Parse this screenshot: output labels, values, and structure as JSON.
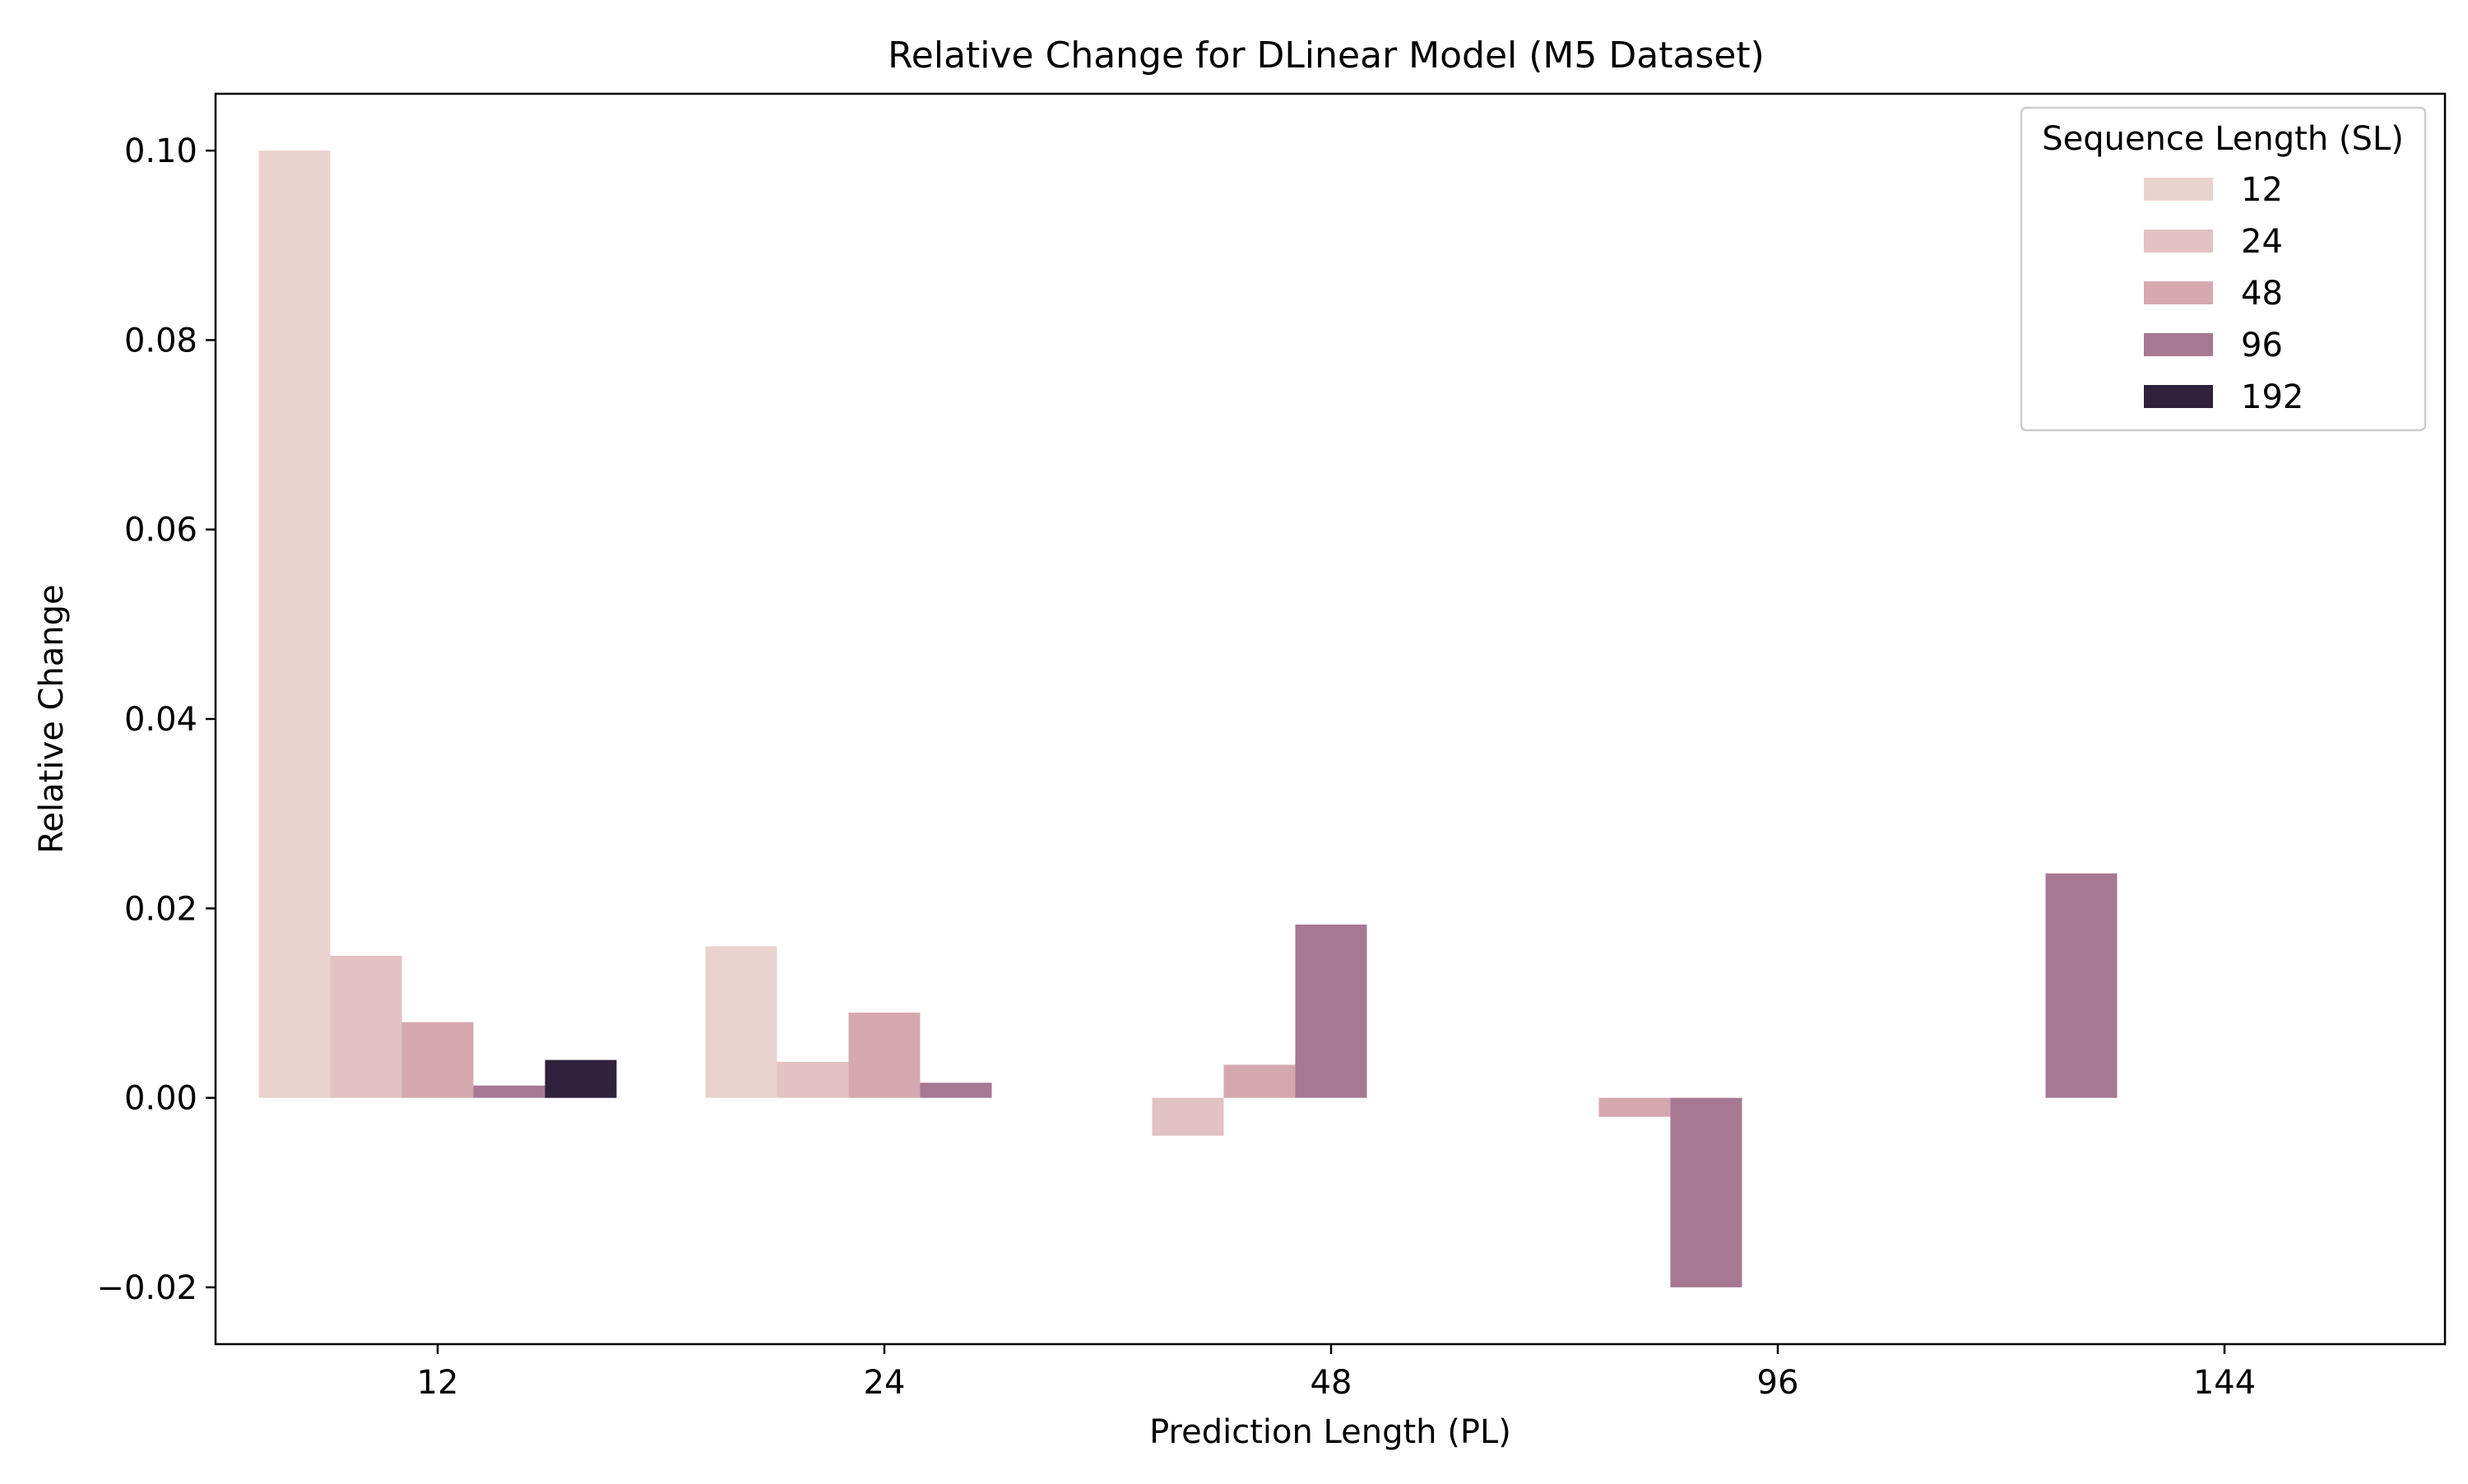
{
  "chart_data": {
    "type": "bar",
    "title": "Relative Change for DLinear Model (M5 Dataset)",
    "xlabel": "Prediction Length (PL)",
    "ylabel": "Relative Change",
    "categories": [
      "12",
      "24",
      "48",
      "96",
      "144"
    ],
    "ylim": [
      -0.026,
      0.106
    ],
    "yticks": [
      -0.02,
      0.0,
      0.02,
      0.04,
      0.06,
      0.08,
      0.1
    ],
    "ytick_labels": [
      "−0.02",
      "0.00",
      "0.02",
      "0.04",
      "0.06",
      "0.08",
      "0.10"
    ],
    "grid": false,
    "legend": {
      "title": "Sequence Length (SL)",
      "placement": "top-right"
    },
    "series": [
      {
        "name": "12",
        "color": "#ead3cf",
        "values": [
          0.1,
          0.016,
          null,
          null,
          null
        ]
      },
      {
        "name": "24",
        "color": "#e2c2c2",
        "values": [
          0.015,
          0.0038,
          -0.004,
          null,
          null
        ]
      },
      {
        "name": "48",
        "color": "#d5a8b0",
        "values": [
          0.008,
          0.009,
          0.0035,
          -0.002,
          null
        ]
      },
      {
        "name": "96",
        "color": "#a67892",
        "values": [
          0.0013,
          0.0016,
          0.0183,
          -0.02,
          0.0237
        ]
      },
      {
        "name": "192",
        "color": "#2e213b",
        "values": [
          0.004,
          null,
          null,
          null,
          null
        ]
      }
    ]
  }
}
